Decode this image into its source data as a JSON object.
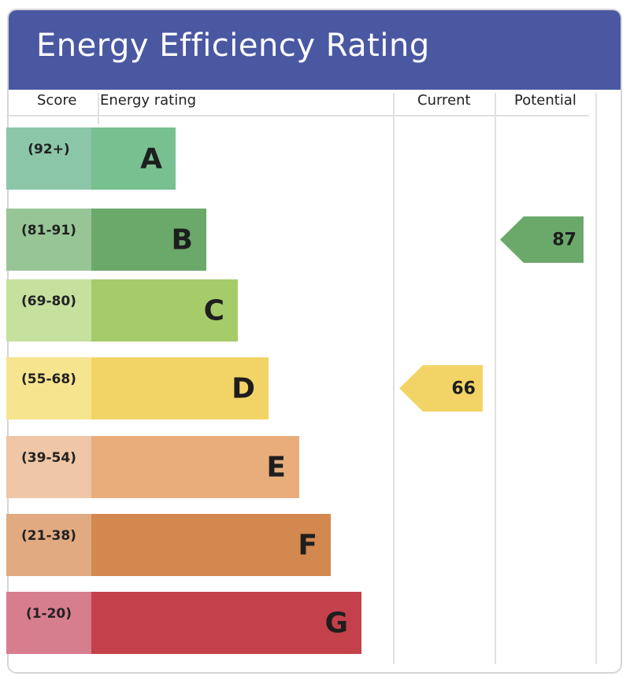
{
  "title": "Energy Efficiency Rating",
  "columns": {
    "score": "Score",
    "energy_rating": "Energy rating",
    "current": "Current",
    "potential": "Potential"
  },
  "chart_data": {
    "type": "bar",
    "title": "Energy Efficiency Rating",
    "bands": [
      {
        "letter": "A",
        "range": "(92+)",
        "min": 92,
        "max": 100,
        "color": "#79c091",
        "score_color": "#8cc6a8"
      },
      {
        "letter": "B",
        "range": "(81-91)",
        "min": 81,
        "max": 91,
        "color": "#6ba96a",
        "score_color": "#97c595"
      },
      {
        "letter": "C",
        "range": "(69-80)",
        "min": 69,
        "max": 80,
        "color": "#a6cc6a",
        "score_color": "#c6e09d"
      },
      {
        "letter": "D",
        "range": "(55-68)",
        "min": 55,
        "max": 68,
        "color": "#f2d466",
        "score_color": "#f7e48e"
      },
      {
        "letter": "E",
        "range": "(39-54)",
        "min": 39,
        "max": 54,
        "color": "#e9ad7c",
        "score_color": "#efc6a6"
      },
      {
        "letter": "F",
        "range": "(21-38)",
        "min": 21,
        "max": 38,
        "color": "#d3884f",
        "score_color": "#e1aa81"
      },
      {
        "letter": "G",
        "range": "(1-20)",
        "min": 1,
        "max": 20,
        "color": "#c4404a",
        "score_color": "#d67d8e"
      }
    ],
    "current": {
      "value": 66,
      "band": "D",
      "color": "#f2d466"
    },
    "potential": {
      "value": 87,
      "band": "B",
      "color": "#6ba96a"
    }
  }
}
